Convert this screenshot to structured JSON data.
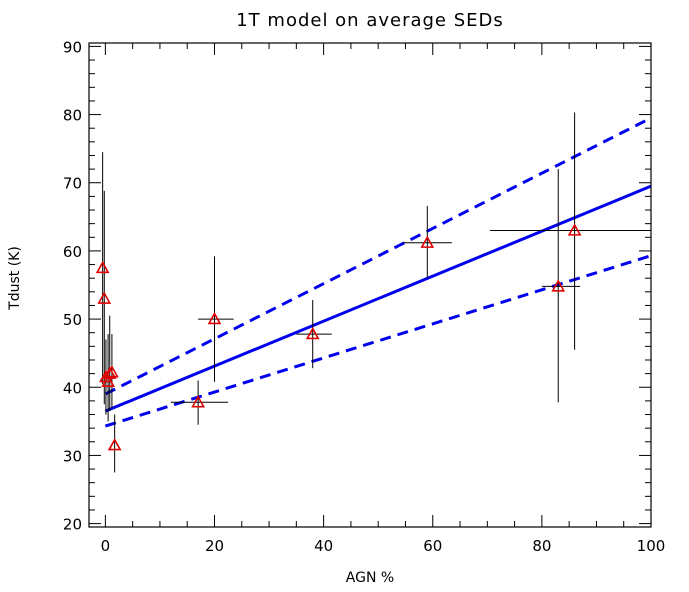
{
  "chart_data": {
    "type": "scatter",
    "title": "1T model on average SEDs",
    "xlabel": "AGN %",
    "ylabel": "Tdust (K)",
    "xlim": [
      -3,
      100
    ],
    "ylim": [
      19.5,
      90.5
    ],
    "xticks": [
      0,
      20,
      40,
      60,
      80,
      100
    ],
    "yticks": [
      20,
      30,
      40,
      50,
      60,
      70,
      80,
      90
    ],
    "xminor": 5,
    "yminor": 2,
    "grid": false,
    "marker_color": "#e00000",
    "line_color": "#0000ee",
    "points": [
      {
        "x": -0.5,
        "y": 57.5,
        "yerr": [
          40.5,
          74.5
        ],
        "xerr": null
      },
      {
        "x": -0.2,
        "y": 53.0,
        "yerr": [
          37.5,
          68.8
        ],
        "xerr": null
      },
      {
        "x": 0.1,
        "y": 41.5,
        "yerr": [
          36.0,
          47.0
        ],
        "xerr": null
      },
      {
        "x": 0.5,
        "y": 40.8,
        "yerr": [
          35.0,
          47.8
        ],
        "xerr": null
      },
      {
        "x": 0.8,
        "y": 42.0,
        "yerr": [
          36.5,
          50.5
        ],
        "xerr": null
      },
      {
        "x": 1.2,
        "y": 42.2,
        "yerr": [
          37.0,
          47.8
        ],
        "xerr": null
      },
      {
        "x": 1.7,
        "y": 31.5,
        "yerr": [
          27.5,
          36.0
        ],
        "xerr": null
      },
      {
        "x": 17.0,
        "y": 37.8,
        "yerr": [
          34.5,
          41.0
        ],
        "xerr": [
          12.0,
          22.5
        ]
      },
      {
        "x": 20.0,
        "y": 50.0,
        "yerr": [
          40.8,
          59.2
        ],
        "xerr": [
          17.0,
          23.5
        ]
      },
      {
        "x": 38.0,
        "y": 47.8,
        "yerr": [
          42.8,
          52.8
        ],
        "xerr": [
          35.0,
          41.5
        ]
      },
      {
        "x": 59.0,
        "y": 61.2,
        "yerr": [
          56.0,
          66.6
        ],
        "xerr": [
          54.5,
          63.5
        ]
      },
      {
        "x": 83.0,
        "y": 54.8,
        "yerr": [
          37.8,
          72.0
        ],
        "xerr": [
          80.0,
          87.0
        ]
      },
      {
        "x": 86.0,
        "y": 63.0,
        "yerr": [
          45.5,
          80.3
        ],
        "xerr": [
          70.5,
          100.0
        ]
      }
    ],
    "series": [
      {
        "style": "solid",
        "x": [
          0,
          100
        ],
        "y": [
          36.5,
          69.5
        ]
      },
      {
        "style": "dashed",
        "x": [
          0,
          100
        ],
        "y": [
          39.0,
          79.5
        ]
      },
      {
        "style": "dashed",
        "x": [
          0,
          100
        ],
        "y": [
          34.3,
          59.3
        ]
      }
    ]
  }
}
